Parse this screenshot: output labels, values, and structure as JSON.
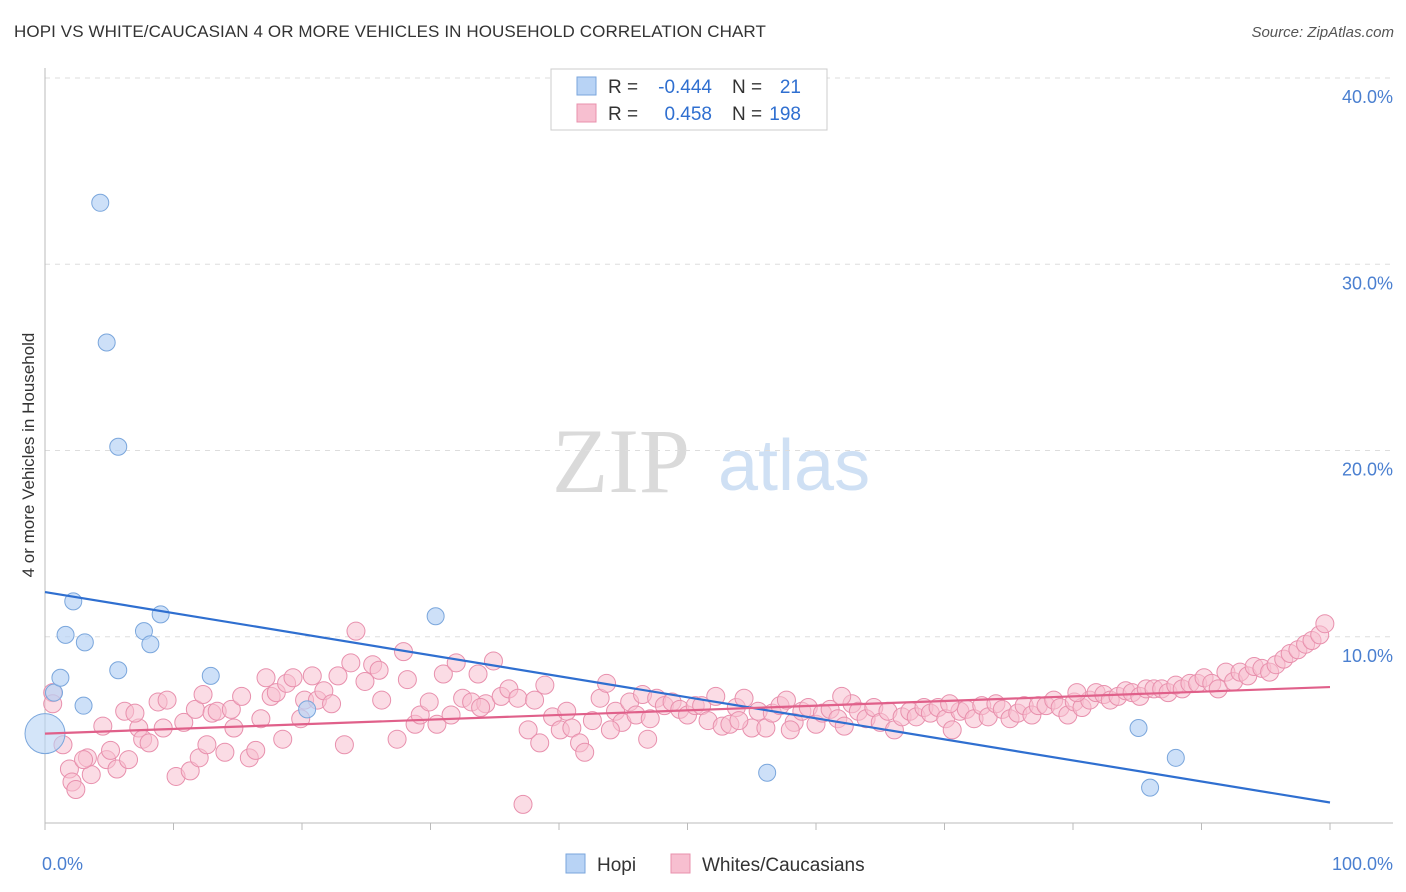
{
  "title": "HOPI VS WHITE/CAUCASIAN 4 OR MORE VEHICLES IN HOUSEHOLD CORRELATION CHART",
  "source": "Source: ZipAtlas.com",
  "watermark": {
    "zip": "ZIP",
    "atlas": "atlas"
  },
  "colors": {
    "hopi_fill": "#b8d3f5",
    "hopi_stroke": "#7aa6dc",
    "hopi_line": "#2f6fd0",
    "white_fill": "#f7bfd0",
    "white_stroke": "#e890ad",
    "white_line": "#e0608a",
    "value_text": "#2f6fd0",
    "grid": "#dddddd"
  },
  "legend": {
    "rows": [
      {
        "r_label": "R =",
        "r_value": "-0.444",
        "n_label": "N =",
        "n_value": "21"
      },
      {
        "r_label": "R =",
        "r_value": "0.458",
        "n_label": "N =",
        "n_value": "198"
      }
    ]
  },
  "bottom_legend": [
    "Hopi",
    "Whites/Caucasians"
  ],
  "chart_data": {
    "type": "scatter",
    "title": "HOPI VS WHITE/CAUCASIAN 4 OR MORE VEHICLES IN HOUSEHOLD CORRELATION CHART",
    "xlabel": "",
    "ylabel": "4 or more Vehicles in Household",
    "xlim": [
      0,
      100
    ],
    "ylim": [
      0,
      40
    ],
    "x_tick_labels": [
      "0.0%",
      "100.0%"
    ],
    "y_ticks": [
      10,
      20,
      30,
      40
    ],
    "y_tick_labels": [
      "10.0%",
      "20.0%",
      "30.0%",
      "40.0%"
    ],
    "grid": "horizontal dashed",
    "legend_position": "top-center",
    "series": [
      {
        "name": "Hopi",
        "r": -0.444,
        "n": 21,
        "trend": [
          [
            0,
            12.4
          ],
          [
            100,
            1.1
          ]
        ],
        "points": [
          [
            0.0,
            4.8,
            "large"
          ],
          [
            0.7,
            7.0
          ],
          [
            1.2,
            7.8
          ],
          [
            1.6,
            10.1
          ],
          [
            2.2,
            11.9
          ],
          [
            3.0,
            6.3
          ],
          [
            3.1,
            9.7
          ],
          [
            4.3,
            33.3
          ],
          [
            4.8,
            25.8
          ],
          [
            5.7,
            20.2
          ],
          [
            5.7,
            8.2
          ],
          [
            7.7,
            10.3
          ],
          [
            8.2,
            9.6
          ],
          [
            9.0,
            11.2
          ],
          [
            12.9,
            7.9
          ],
          [
            20.4,
            6.1
          ],
          [
            30.4,
            11.1
          ],
          [
            56.2,
            2.7
          ],
          [
            85.1,
            5.1
          ],
          [
            86.0,
            1.9
          ],
          [
            88.0,
            3.5
          ]
        ]
      },
      {
        "name": "Whites/Caucasians",
        "r": 0.458,
        "n": 198,
        "trend": [
          [
            0,
            4.8
          ],
          [
            100,
            7.3
          ]
        ],
        "points": [
          [
            0.6,
            7.0
          ],
          [
            0.6,
            6.4
          ],
          [
            1.4,
            4.2
          ],
          [
            1.9,
            2.9
          ],
          [
            2.1,
            2.2
          ],
          [
            2.4,
            1.8
          ],
          [
            3.3,
            3.5
          ],
          [
            3.6,
            2.6
          ],
          [
            4.5,
            5.2
          ],
          [
            4.8,
            3.4
          ],
          [
            5.1,
            3.9
          ],
          [
            5.6,
            2.9
          ],
          [
            6.2,
            6.0
          ],
          [
            6.5,
            3.4
          ],
          [
            7.3,
            5.1
          ],
          [
            7.6,
            4.5
          ],
          [
            8.1,
            4.3
          ],
          [
            8.8,
            6.5
          ],
          [
            9.2,
            5.1
          ],
          [
            9.5,
            6.6
          ],
          [
            10.2,
            2.5
          ],
          [
            10.8,
            5.4
          ],
          [
            11.3,
            2.8
          ],
          [
            11.7,
            6.1
          ],
          [
            12.0,
            3.5
          ],
          [
            12.6,
            4.2
          ],
          [
            13.0,
            5.9
          ],
          [
            13.4,
            6.0
          ],
          [
            14.0,
            3.8
          ],
          [
            14.5,
            6.1
          ],
          [
            14.7,
            5.1
          ],
          [
            15.3,
            6.8
          ],
          [
            15.9,
            3.5
          ],
          [
            16.4,
            3.9
          ],
          [
            16.8,
            5.6
          ],
          [
            17.2,
            7.8
          ],
          [
            17.6,
            6.8
          ],
          [
            18.0,
            7.0
          ],
          [
            18.5,
            4.5
          ],
          [
            18.8,
            7.5
          ],
          [
            19.3,
            7.8
          ],
          [
            19.9,
            5.6
          ],
          [
            20.2,
            6.6
          ],
          [
            21.2,
            6.6
          ],
          [
            21.7,
            7.1
          ],
          [
            22.3,
            6.4
          ],
          [
            22.8,
            7.9
          ],
          [
            23.3,
            4.2
          ],
          [
            23.8,
            8.6
          ],
          [
            24.2,
            10.3
          ],
          [
            24.9,
            7.6
          ],
          [
            25.5,
            8.5
          ],
          [
            26.2,
            6.6
          ],
          [
            27.4,
            4.5
          ],
          [
            27.9,
            9.2
          ],
          [
            28.2,
            7.7
          ],
          [
            28.8,
            5.3
          ],
          [
            29.2,
            5.8
          ],
          [
            29.9,
            6.5
          ],
          [
            30.5,
            5.3
          ],
          [
            31.0,
            8.0
          ],
          [
            31.6,
            5.8
          ],
          [
            32.0,
            8.6
          ],
          [
            32.5,
            6.7
          ],
          [
            33.2,
            6.5
          ],
          [
            33.7,
            8.0
          ],
          [
            34.3,
            6.4
          ],
          [
            34.9,
            8.7
          ],
          [
            35.5,
            6.8
          ],
          [
            36.1,
            7.2
          ],
          [
            36.8,
            6.7
          ],
          [
            37.2,
            1.0
          ],
          [
            37.6,
            5.0
          ],
          [
            38.1,
            6.6
          ],
          [
            38.5,
            4.3
          ],
          [
            38.9,
            7.4
          ],
          [
            39.5,
            5.7
          ],
          [
            40.1,
            5.0
          ],
          [
            40.6,
            6.0
          ],
          [
            41.0,
            5.1
          ],
          [
            41.6,
            4.3
          ],
          [
            42.0,
            3.8
          ],
          [
            42.6,
            5.5
          ],
          [
            43.2,
            6.7
          ],
          [
            43.7,
            7.5
          ],
          [
            44.4,
            6.0
          ],
          [
            44.9,
            5.4
          ],
          [
            45.5,
            6.5
          ],
          [
            46.0,
            5.8
          ],
          [
            46.5,
            6.9
          ],
          [
            47.1,
            5.6
          ],
          [
            47.6,
            6.7
          ],
          [
            48.2,
            6.3
          ],
          [
            48.8,
            6.5
          ],
          [
            49.4,
            6.1
          ],
          [
            50.0,
            5.8
          ],
          [
            50.6,
            6.3
          ],
          [
            51.1,
            6.3
          ],
          [
            51.6,
            5.5
          ],
          [
            52.2,
            6.8
          ],
          [
            52.7,
            5.2
          ],
          [
            53.3,
            5.3
          ],
          [
            53.8,
            6.2
          ],
          [
            54.4,
            6.7
          ],
          [
            55.0,
            5.1
          ],
          [
            55.5,
            6.0
          ],
          [
            56.1,
            5.1
          ],
          [
            56.6,
            5.9
          ],
          [
            57.2,
            6.3
          ],
          [
            57.7,
            6.6
          ],
          [
            58.3,
            5.4
          ],
          [
            58.9,
            6.0
          ],
          [
            59.4,
            6.2
          ],
          [
            60.0,
            5.3
          ],
          [
            60.5,
            5.9
          ],
          [
            61.1,
            6.1
          ],
          [
            61.7,
            5.6
          ],
          [
            62.2,
            5.2
          ],
          [
            62.8,
            6.4
          ],
          [
            63.3,
            6.0
          ],
          [
            63.9,
            5.6
          ],
          [
            64.5,
            6.2
          ],
          [
            65.0,
            5.4
          ],
          [
            65.6,
            6.0
          ],
          [
            66.1,
            5.0
          ],
          [
            66.7,
            5.7
          ],
          [
            67.3,
            6.0
          ],
          [
            67.8,
            5.7
          ],
          [
            68.4,
            6.2
          ],
          [
            68.9,
            5.9
          ],
          [
            69.5,
            6.2
          ],
          [
            70.1,
            5.6
          ],
          [
            70.6,
            5.0
          ],
          [
            71.2,
            6.0
          ],
          [
            71.7,
            6.1
          ],
          [
            72.3,
            5.6
          ],
          [
            72.9,
            6.3
          ],
          [
            73.4,
            5.7
          ],
          [
            74.0,
            6.4
          ],
          [
            74.5,
            6.1
          ],
          [
            75.1,
            5.6
          ],
          [
            75.7,
            5.9
          ],
          [
            76.2,
            6.3
          ],
          [
            76.8,
            5.8
          ],
          [
            77.3,
            6.3
          ],
          [
            77.9,
            6.3
          ],
          [
            78.5,
            6.6
          ],
          [
            79.0,
            6.2
          ],
          [
            79.6,
            5.8
          ],
          [
            80.1,
            6.5
          ],
          [
            80.7,
            6.2
          ],
          [
            81.3,
            6.6
          ],
          [
            81.8,
            7.0
          ],
          [
            82.4,
            6.9
          ],
          [
            82.9,
            6.6
          ],
          [
            83.5,
            6.8
          ],
          [
            84.1,
            7.1
          ],
          [
            84.6,
            7.0
          ],
          [
            85.2,
            6.8
          ],
          [
            85.7,
            7.2
          ],
          [
            86.3,
            7.2
          ],
          [
            86.9,
            7.2
          ],
          [
            87.4,
            7.0
          ],
          [
            88.0,
            7.4
          ],
          [
            88.5,
            7.2
          ],
          [
            89.1,
            7.5
          ],
          [
            89.7,
            7.5
          ],
          [
            90.2,
            7.8
          ],
          [
            90.8,
            7.5
          ],
          [
            91.3,
            7.2
          ],
          [
            91.9,
            8.1
          ],
          [
            92.5,
            7.6
          ],
          [
            93.0,
            8.1
          ],
          [
            93.6,
            7.9
          ],
          [
            94.1,
            8.4
          ],
          [
            94.7,
            8.3
          ],
          [
            95.3,
            8.1
          ],
          [
            95.8,
            8.5
          ],
          [
            96.4,
            8.8
          ],
          [
            96.9,
            9.1
          ],
          [
            97.5,
            9.3
          ],
          [
            98.1,
            9.6
          ],
          [
            98.6,
            9.8
          ],
          [
            99.2,
            10.1
          ],
          [
            99.6,
            10.7
          ],
          [
            80.3,
            7.0
          ],
          [
            70.4,
            6.4
          ],
          [
            62.0,
            6.8
          ],
          [
            54.0,
            5.5
          ],
          [
            44.0,
            5.0
          ],
          [
            33.9,
            6.2
          ],
          [
            26.0,
            8.2
          ],
          [
            20.8,
            7.9
          ],
          [
            12.3,
            6.9
          ],
          [
            7.0,
            5.9
          ],
          [
            3.0,
            3.4
          ],
          [
            46.9,
            4.5
          ],
          [
            58.0,
            5.0
          ]
        ]
      }
    ]
  }
}
